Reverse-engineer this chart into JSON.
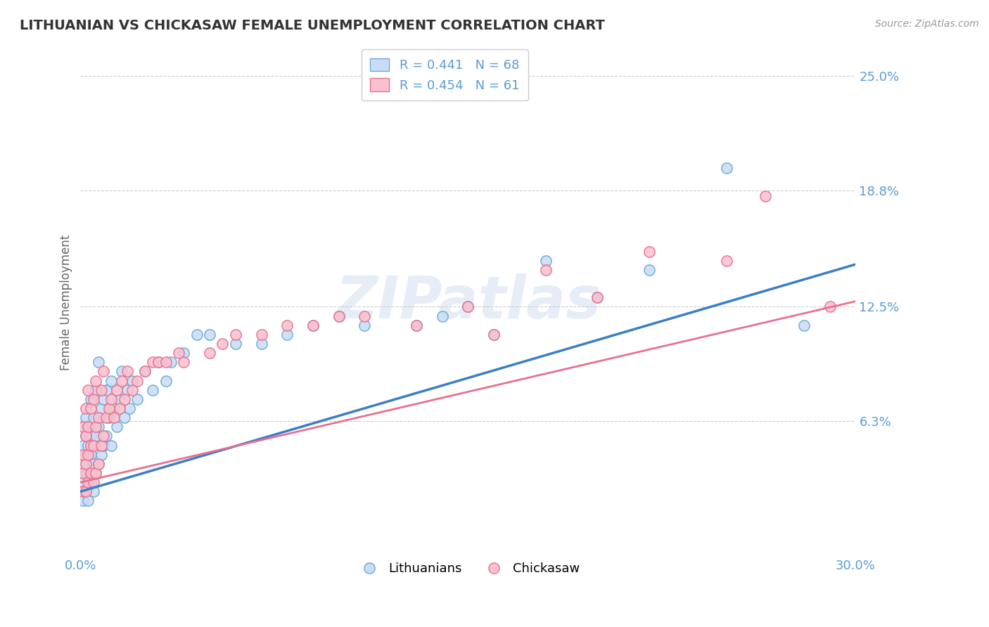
{
  "title": "LITHUANIAN VS CHICKASAW FEMALE UNEMPLOYMENT CORRELATION CHART",
  "source": "Source: ZipAtlas.com",
  "ylabel": "Female Unemployment",
  "yticks": [
    0.063,
    0.125,
    0.188,
    0.25
  ],
  "ytick_labels": [
    "6.3%",
    "12.5%",
    "18.8%",
    "25.0%"
  ],
  "xmin": 0.0,
  "xmax": 0.3,
  "ymin": -0.01,
  "ymax": 0.265,
  "r_lithuanian": 0.441,
  "n_lithuanian": 68,
  "r_chickasaw": 0.454,
  "n_chickasaw": 61,
  "color_lithuanian_face": "#C8DCF5",
  "color_lithuanian_edge": "#6AAAD8",
  "color_chickasaw_face": "#FAC0CE",
  "color_chickasaw_edge": "#E87090",
  "color_line_lithuanian": "#3A7EC6",
  "color_line_chickasaw": "#E87090",
  "color_title": "#333333",
  "color_yticks": "#5B9BD5",
  "color_xticks": "#5B9BD5",
  "color_source": "#999999",
  "watermark": "ZIPatlas",
  "background_color": "#FFFFFF",
  "legend_label_1": "Lithuanians",
  "legend_label_2": "Chickasaw",
  "lith_trend_x0": 0.0,
  "lith_trend_y0": 0.025,
  "lith_trend_x1": 0.3,
  "lith_trend_y1": 0.148,
  "chick_trend_x0": 0.0,
  "chick_trend_y0": 0.03,
  "chick_trend_x1": 0.3,
  "chick_trend_y1": 0.128,
  "lithuanian_x": [
    0.001,
    0.001,
    0.001,
    0.001,
    0.001,
    0.002,
    0.002,
    0.002,
    0.002,
    0.002,
    0.003,
    0.003,
    0.003,
    0.003,
    0.004,
    0.004,
    0.004,
    0.004,
    0.005,
    0.005,
    0.005,
    0.006,
    0.006,
    0.006,
    0.007,
    0.007,
    0.007,
    0.008,
    0.008,
    0.009,
    0.009,
    0.01,
    0.01,
    0.011,
    0.012,
    0.012,
    0.013,
    0.014,
    0.015,
    0.016,
    0.017,
    0.018,
    0.019,
    0.02,
    0.022,
    0.025,
    0.028,
    0.03,
    0.033,
    0.035,
    0.04,
    0.045,
    0.05,
    0.06,
    0.07,
    0.08,
    0.09,
    0.1,
    0.11,
    0.13,
    0.14,
    0.15,
    0.16,
    0.18,
    0.2,
    0.22,
    0.25,
    0.28
  ],
  "lithuanian_y": [
    0.02,
    0.03,
    0.04,
    0.05,
    0.06,
    0.025,
    0.035,
    0.045,
    0.055,
    0.065,
    0.02,
    0.035,
    0.05,
    0.06,
    0.03,
    0.045,
    0.055,
    0.075,
    0.025,
    0.04,
    0.065,
    0.035,
    0.055,
    0.08,
    0.04,
    0.06,
    0.095,
    0.045,
    0.07,
    0.05,
    0.075,
    0.055,
    0.08,
    0.065,
    0.05,
    0.085,
    0.07,
    0.06,
    0.075,
    0.09,
    0.065,
    0.08,
    0.07,
    0.085,
    0.075,
    0.09,
    0.08,
    0.095,
    0.085,
    0.095,
    0.1,
    0.11,
    0.11,
    0.105,
    0.105,
    0.11,
    0.115,
    0.12,
    0.115,
    0.115,
    0.12,
    0.125,
    0.11,
    0.15,
    0.13,
    0.145,
    0.2,
    0.115
  ],
  "chickasaw_x": [
    0.001,
    0.001,
    0.001,
    0.001,
    0.002,
    0.002,
    0.002,
    0.002,
    0.003,
    0.003,
    0.003,
    0.003,
    0.004,
    0.004,
    0.004,
    0.005,
    0.005,
    0.005,
    0.006,
    0.006,
    0.006,
    0.007,
    0.007,
    0.008,
    0.008,
    0.009,
    0.009,
    0.01,
    0.011,
    0.012,
    0.013,
    0.014,
    0.015,
    0.016,
    0.017,
    0.018,
    0.02,
    0.022,
    0.025,
    0.028,
    0.03,
    0.033,
    0.038,
    0.04,
    0.05,
    0.055,
    0.06,
    0.07,
    0.08,
    0.09,
    0.1,
    0.11,
    0.13,
    0.15,
    0.16,
    0.18,
    0.2,
    0.22,
    0.25,
    0.265,
    0.29
  ],
  "chickasaw_y": [
    0.025,
    0.035,
    0.045,
    0.06,
    0.025,
    0.04,
    0.055,
    0.07,
    0.03,
    0.045,
    0.06,
    0.08,
    0.035,
    0.05,
    0.07,
    0.03,
    0.05,
    0.075,
    0.035,
    0.06,
    0.085,
    0.04,
    0.065,
    0.05,
    0.08,
    0.055,
    0.09,
    0.065,
    0.07,
    0.075,
    0.065,
    0.08,
    0.07,
    0.085,
    0.075,
    0.09,
    0.08,
    0.085,
    0.09,
    0.095,
    0.095,
    0.095,
    0.1,
    0.095,
    0.1,
    0.105,
    0.11,
    0.11,
    0.115,
    0.115,
    0.12,
    0.12,
    0.115,
    0.125,
    0.11,
    0.145,
    0.13,
    0.155,
    0.15,
    0.185,
    0.125
  ]
}
